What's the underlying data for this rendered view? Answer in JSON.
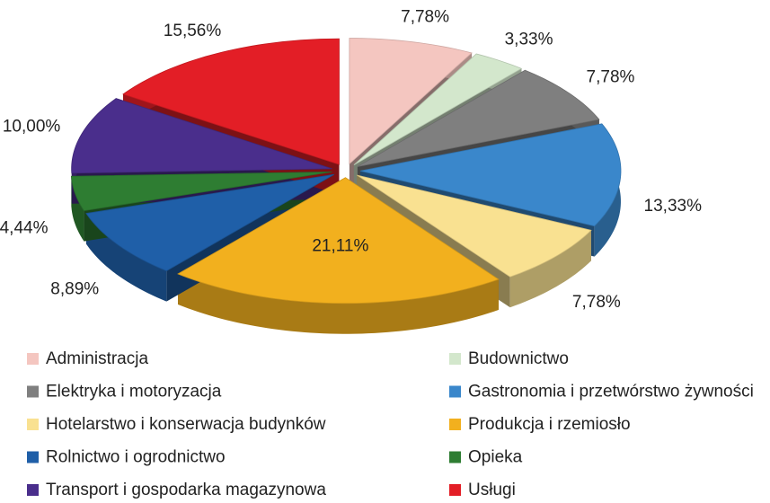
{
  "chart_data": {
    "type": "pie",
    "categories": [
      "Administracja",
      "Budownictwo",
      "Elektryka i motoryzacja",
      "Gastronomia i przetwórstwo żywności",
      "Hotelarstwo i konserwacja budynków",
      "Produkcja i rzemiosło",
      "Rolnictwo i ogrodnictwo",
      "Opieka",
      "Transport i gospodarka magazynowa",
      "Usługi"
    ],
    "values": [
      7.78,
      3.33,
      7.78,
      13.33,
      7.78,
      21.11,
      8.89,
      4.44,
      10.0,
      15.56
    ],
    "value_labels": [
      "7,78%",
      "3,33%",
      "7,78%",
      "13,33%",
      "7,78%",
      "21,11%",
      "8,89%",
      "4,44%",
      "10,00%",
      "15,56%"
    ],
    "colors": [
      "#f4c6c0",
      "#d3e7cc",
      "#7f7f7f",
      "#3a87cb",
      "#f9e191",
      "#f2b01e",
      "#1f5fa8",
      "#2e7d32",
      "#4a2e8c",
      "#e31e26"
    ],
    "legend": "bottom"
  }
}
